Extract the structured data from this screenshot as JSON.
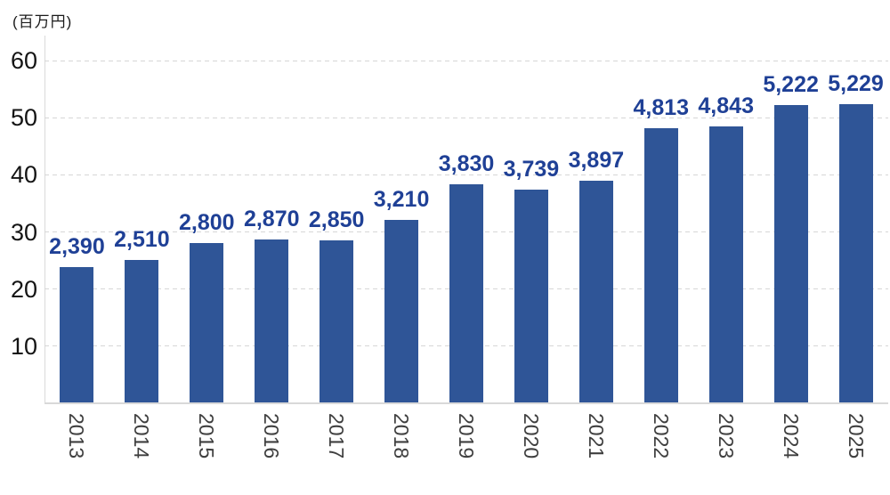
{
  "chart_data": {
    "type": "bar",
    "title": "",
    "unit_label": "(百万円)",
    "categories": [
      "2013",
      "2014",
      "2015",
      "2016",
      "2017",
      "2018",
      "2019",
      "2020",
      "2021",
      "2022",
      "2023",
      "2024",
      "2025"
    ],
    "values": [
      2390,
      2510,
      2800,
      2870,
      2850,
      3210,
      3830,
      3739,
      3897,
      4813,
      4843,
      5222,
      5229
    ],
    "value_labels": [
      "2,390",
      "2,510",
      "2,800",
      "2,870",
      "2,850",
      "3,210",
      "3,830",
      "3,739",
      "3,897",
      "4,813",
      "4,843",
      "5,222",
      "5,229"
    ],
    "y_ticks": [
      10,
      20,
      30,
      40,
      50,
      60
    ],
    "ylim": [
      0,
      65
    ],
    "value_divisor": 100,
    "grid": "dashed horizontal",
    "legend_position": "none",
    "bar_color": "#2f5597",
    "value_label_color": "#1f4096",
    "tick_label_color": "#141414",
    "year_label_color": "#3f3f3f",
    "gridline_color": "#d6d6d6"
  }
}
